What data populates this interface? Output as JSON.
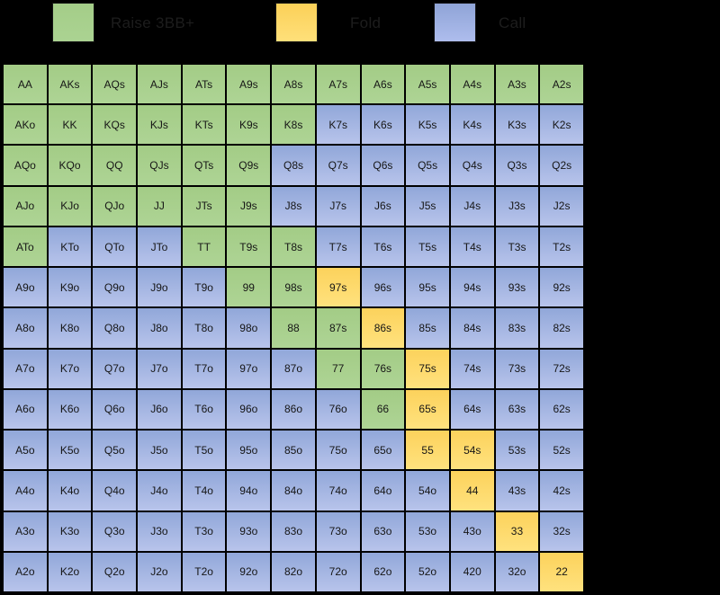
{
  "legend": {
    "items": [
      {
        "key": "green",
        "hex": "#a9d18e",
        "label": "Raise 3BB+"
      },
      {
        "key": "yellow",
        "hex": "#ffd966",
        "label": "Fold"
      },
      {
        "key": "blue",
        "hex": "#8faadc",
        "label": "Call"
      }
    ]
  },
  "chart_data": {
    "type": "heatmap",
    "title": "",
    "description": "13x13 poker starting-hand action matrix; cell color encodes the action from the legend",
    "legend_position": "top",
    "categories_note": "pairs on diagonal, suited hands above, offsuit hands below",
    "actions_key": {
      "green": "Raise 3BB+",
      "yellow": "Fold",
      "blue": "Call"
    },
    "rows": [
      {
        "hands": [
          "AA",
          "AKs",
          "AQs",
          "AJs",
          "ATs",
          "A9s",
          "A8s",
          "A7s",
          "A6s",
          "A5s",
          "A4s",
          "A3s",
          "A2s"
        ],
        "actions": [
          "green",
          "green",
          "green",
          "green",
          "green",
          "green",
          "green",
          "green",
          "green",
          "green",
          "green",
          "green",
          "green"
        ]
      },
      {
        "hands": [
          "AKo",
          "KK",
          "KQs",
          "KJs",
          "KTs",
          "K9s",
          "K8s",
          "K7s",
          "K6s",
          "K5s",
          "K4s",
          "K3s",
          "K2s"
        ],
        "actions": [
          "green",
          "green",
          "green",
          "green",
          "green",
          "green",
          "green",
          "blue",
          "blue",
          "blue",
          "blue",
          "blue",
          "blue"
        ]
      },
      {
        "hands": [
          "AQo",
          "KQo",
          "QQ",
          "QJs",
          "QTs",
          "Q9s",
          "Q8s",
          "Q7s",
          "Q6s",
          "Q5s",
          "Q4s",
          "Q3s",
          "Q2s"
        ],
        "actions": [
          "green",
          "green",
          "green",
          "green",
          "green",
          "green",
          "blue",
          "blue",
          "blue",
          "blue",
          "blue",
          "blue",
          "blue"
        ]
      },
      {
        "hands": [
          "AJo",
          "KJo",
          "QJo",
          "JJ",
          "JTs",
          "J9s",
          "J8s",
          "J7s",
          "J6s",
          "J5s",
          "J4s",
          "J3s",
          "J2s"
        ],
        "actions": [
          "green",
          "green",
          "green",
          "green",
          "green",
          "green",
          "blue",
          "blue",
          "blue",
          "blue",
          "blue",
          "blue",
          "blue"
        ]
      },
      {
        "hands": [
          "ATo",
          "KTo",
          "QTo",
          "JTo",
          "TT",
          "T9s",
          "T8s",
          "T7s",
          "T6s",
          "T5s",
          "T4s",
          "T3s",
          "T2s"
        ],
        "actions": [
          "green",
          "blue",
          "blue",
          "blue",
          "green",
          "green",
          "green",
          "blue",
          "blue",
          "blue",
          "blue",
          "blue",
          "blue"
        ]
      },
      {
        "hands": [
          "A9o",
          "K9o",
          "Q9o",
          "J9o",
          "T9o",
          "99",
          "98s",
          "97s",
          "96s",
          "95s",
          "94s",
          "93s",
          "92s"
        ],
        "actions": [
          "blue",
          "blue",
          "blue",
          "blue",
          "blue",
          "green",
          "green",
          "yellow",
          "blue",
          "blue",
          "blue",
          "blue",
          "blue"
        ]
      },
      {
        "hands": [
          "A8o",
          "K8o",
          "Q8o",
          "J8o",
          "T8o",
          "98o",
          "88",
          "87s",
          "86s",
          "85s",
          "84s",
          "83s",
          "82s"
        ],
        "actions": [
          "blue",
          "blue",
          "blue",
          "blue",
          "blue",
          "blue",
          "green",
          "green",
          "yellow",
          "blue",
          "blue",
          "blue",
          "blue"
        ]
      },
      {
        "hands": [
          "A7o",
          "K7o",
          "Q7o",
          "J7o",
          "T7o",
          "97o",
          "87o",
          "77",
          "76s",
          "75s",
          "74s",
          "73s",
          "72s"
        ],
        "actions": [
          "blue",
          "blue",
          "blue",
          "blue",
          "blue",
          "blue",
          "blue",
          "green",
          "green",
          "yellow",
          "blue",
          "blue",
          "blue"
        ]
      },
      {
        "hands": [
          "A6o",
          "K6o",
          "Q6o",
          "J6o",
          "T6o",
          "96o",
          "86o",
          "76o",
          "66",
          "65s",
          "64s",
          "63s",
          "62s"
        ],
        "actions": [
          "blue",
          "blue",
          "blue",
          "blue",
          "blue",
          "blue",
          "blue",
          "blue",
          "green",
          "yellow",
          "blue",
          "blue",
          "blue"
        ]
      },
      {
        "hands": [
          "A5o",
          "K5o",
          "Q5o",
          "J5o",
          "T5o",
          "95o",
          "85o",
          "75o",
          "65o",
          "55",
          "54s",
          "53s",
          "52s"
        ],
        "actions": [
          "blue",
          "blue",
          "blue",
          "blue",
          "blue",
          "blue",
          "blue",
          "blue",
          "blue",
          "yellow",
          "yellow",
          "blue",
          "blue"
        ]
      },
      {
        "hands": [
          "A4o",
          "K4o",
          "Q4o",
          "J4o",
          "T4o",
          "94o",
          "84o",
          "74o",
          "64o",
          "54o",
          "44",
          "43s",
          "42s"
        ],
        "actions": [
          "blue",
          "blue",
          "blue",
          "blue",
          "blue",
          "blue",
          "blue",
          "blue",
          "blue",
          "blue",
          "yellow",
          "blue",
          "blue"
        ]
      },
      {
        "hands": [
          "A3o",
          "K3o",
          "Q3o",
          "J3o",
          "T3o",
          "93o",
          "83o",
          "73o",
          "63o",
          "53o",
          "43o",
          "33",
          "32s"
        ],
        "actions": [
          "blue",
          "blue",
          "blue",
          "blue",
          "blue",
          "blue",
          "blue",
          "blue",
          "blue",
          "blue",
          "blue",
          "yellow",
          "blue"
        ]
      },
      {
        "hands": [
          "A2o",
          "K2o",
          "Q2o",
          "J2o",
          "T2o",
          "92o",
          "82o",
          "72o",
          "62o",
          "52o",
          "420",
          "32o",
          "22"
        ],
        "actions": [
          "blue",
          "blue",
          "blue",
          "blue",
          "blue",
          "blue",
          "blue",
          "blue",
          "blue",
          "blue",
          "blue",
          "blue",
          "yellow"
        ]
      }
    ]
  }
}
